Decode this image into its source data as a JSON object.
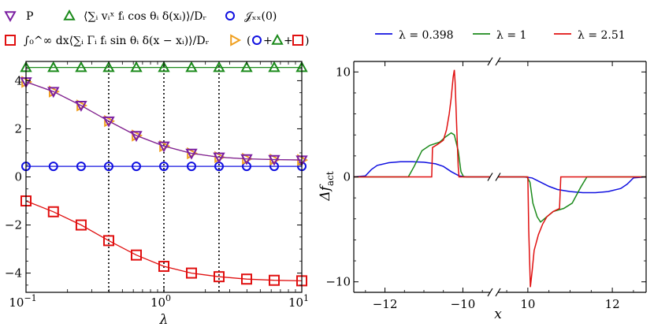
{
  "chart_data": [
    {
      "type": "scatter",
      "xscale": "log",
      "xlabel": "λ",
      "xlim": [
        0.1,
        10
      ],
      "ylim": [
        -4.8,
        4.8
      ],
      "xticks": [
        0.1,
        1,
        10
      ],
      "xtick_labels": [
        "10",
        "10",
        "10"
      ],
      "xtick_exponents": [
        "−1",
        "0",
        "1"
      ],
      "yticks": [
        -4,
        -2,
        0,
        2,
        4
      ],
      "ytick_labels": [
        "−4",
        "−2",
        "0",
        "2",
        "4"
      ],
      "vlines": [
        0.398,
        1,
        2.51
      ],
      "legend_position": "top",
      "legend_labels": {
        "P": "P",
        "act": "⟨∑ᵢ vᵢˣ fᵢ cos θᵢ δ(xᵢ)⟩/Dᵣ",
        "J": "𝒥ₓₓ(0)",
        "int": "∫₀^∞ dx⟨∑ᵢ Γᵢ fᵢ sin θᵢ δ(x − xᵢ)⟩/Dᵣ",
        "sum_open": "(",
        "plus1": "+",
        "plus2": "+",
        "sum_close": ")"
      },
      "x": [
        0.1,
        0.158,
        0.251,
        0.398,
        0.631,
        1.0,
        1.585,
        2.512,
        3.981,
        6.31,
        10.0
      ],
      "series": [
        {
          "key": "P",
          "color": "#7b1fa2",
          "marker": "triangle-down",
          "values": [
            3.95,
            3.55,
            2.97,
            2.32,
            1.72,
            1.28,
            0.98,
            0.82,
            0.75,
            0.72,
            0.7
          ]
        },
        {
          "key": "act",
          "color": "#1b8a1b",
          "marker": "triangle-up",
          "values": [
            4.55,
            4.55,
            4.55,
            4.55,
            4.55,
            4.55,
            4.55,
            4.55,
            4.55,
            4.55,
            4.55
          ]
        },
        {
          "key": "J",
          "color": "#1010e0",
          "marker": "circle",
          "values": [
            0.44,
            0.44,
            0.44,
            0.44,
            0.44,
            0.44,
            0.44,
            0.44,
            0.44,
            0.44,
            0.44
          ]
        },
        {
          "key": "int",
          "color": "#e01010",
          "marker": "square",
          "values": [
            -1.0,
            -1.45,
            -2.0,
            -2.65,
            -3.25,
            -3.72,
            -4.0,
            -4.15,
            -4.25,
            -4.3,
            -4.32
          ]
        },
        {
          "key": "sum",
          "color": "#f0a020",
          "marker": "triangle-right",
          "values": [
            3.95,
            3.55,
            2.97,
            2.32,
            1.72,
            1.28,
            0.98,
            0.82,
            0.75,
            0.72,
            0.7
          ]
        }
      ]
    },
    {
      "type": "line",
      "xlabel": "x",
      "ylabel": "Δf",
      "ylabel_sub": "act",
      "ylim": [
        -11,
        11
      ],
      "yticks": [
        -10,
        0,
        10
      ],
      "ytick_labels": [
        "−10",
        "0",
        "10"
      ],
      "broken_x_axis": true,
      "left_segment": {
        "xlim": [
          -12.8,
          -9.2
        ],
        "xticks": [
          -12,
          -10
        ],
        "xtick_labels": [
          "−12",
          "−10"
        ]
      },
      "right_segment": {
        "xlim": [
          9.2,
          12.8
        ],
        "xticks": [
          10,
          12
        ],
        "xtick_labels": [
          "10",
          "12"
        ]
      },
      "legend_position": "top",
      "series": [
        {
          "name": "λ = 0.398",
          "color": "#1010e0",
          "left": [
            [
              -12.8,
              0
            ],
            [
              -12.5,
              0.1
            ],
            [
              -12.35,
              0.7
            ],
            [
              -12.2,
              1.1
            ],
            [
              -11.9,
              1.35
            ],
            [
              -11.6,
              1.45
            ],
            [
              -11.3,
              1.45
            ],
            [
              -11.0,
              1.4
            ],
            [
              -10.7,
              1.25
            ],
            [
              -10.5,
              1.0
            ],
            [
              -10.3,
              0.5
            ],
            [
              -10.1,
              0.1
            ],
            [
              -9.9,
              0
            ],
            [
              -9.2,
              0
            ]
          ],
          "right": [
            [
              9.2,
              0
            ],
            [
              9.9,
              0
            ],
            [
              10.1,
              -0.1
            ],
            [
              10.3,
              -0.5
            ],
            [
              10.5,
              -0.9
            ],
            [
              10.7,
              -1.2
            ],
            [
              11.0,
              -1.4
            ],
            [
              11.3,
              -1.5
            ],
            [
              11.6,
              -1.5
            ],
            [
              11.9,
              -1.4
            ],
            [
              12.2,
              -1.1
            ],
            [
              12.35,
              -0.7
            ],
            [
              12.5,
              -0.1
            ],
            [
              12.8,
              0
            ]
          ]
        },
        {
          "name": "λ = 1",
          "color": "#1b8a1b",
          "left": [
            [
              -12.8,
              0
            ],
            [
              -11.4,
              0
            ],
            [
              -11.25,
              1.0
            ],
            [
              -11.05,
              2.5
            ],
            [
              -10.85,
              3.0
            ],
            [
              -10.6,
              3.3
            ],
            [
              -10.45,
              3.8
            ],
            [
              -10.3,
              4.2
            ],
            [
              -10.22,
              4.0
            ],
            [
              -10.12,
              2.5
            ],
            [
              -10.05,
              0.5
            ],
            [
              -9.98,
              0
            ],
            [
              -9.2,
              0
            ]
          ],
          "right": [
            [
              9.2,
              0
            ],
            [
              9.98,
              0
            ],
            [
              10.05,
              -0.5
            ],
            [
              10.12,
              -2.5
            ],
            [
              10.22,
              -3.8
            ],
            [
              10.3,
              -4.3
            ],
            [
              10.45,
              -3.8
            ],
            [
              10.6,
              -3.3
            ],
            [
              10.85,
              -3.0
            ],
            [
              11.05,
              -2.5
            ],
            [
              11.25,
              -1.0
            ],
            [
              11.4,
              0
            ],
            [
              12.8,
              0
            ]
          ]
        },
        {
          "name": "λ = 2.51",
          "color": "#e01010",
          "left": [
            [
              -12.8,
              0
            ],
            [
              -10.8,
              0
            ],
            [
              -10.78,
              2.8
            ],
            [
              -10.65,
              3.1
            ],
            [
              -10.5,
              3.5
            ],
            [
              -10.42,
              4.5
            ],
            [
              -10.35,
              6.0
            ],
            [
              -10.3,
              7.5
            ],
            [
              -10.25,
              9.5
            ],
            [
              -10.22,
              10.2
            ],
            [
              -10.2,
              9.0
            ],
            [
              -10.16,
              5.0
            ],
            [
              -10.12,
              1.0
            ],
            [
              -10.1,
              0
            ],
            [
              -9.2,
              0
            ]
          ],
          "right": [
            [
              9.2,
              0
            ],
            [
              10.0,
              0
            ],
            [
              10.02,
              -5.0
            ],
            [
              10.06,
              -10.5
            ],
            [
              10.1,
              -9.0
            ],
            [
              10.15,
              -7.0
            ],
            [
              10.25,
              -5.5
            ],
            [
              10.35,
              -4.5
            ],
            [
              10.45,
              -3.8
            ],
            [
              10.6,
              -3.3
            ],
            [
              10.75,
              -3.0
            ],
            [
              10.78,
              0
            ],
            [
              12.8,
              0
            ]
          ]
        }
      ]
    }
  ]
}
